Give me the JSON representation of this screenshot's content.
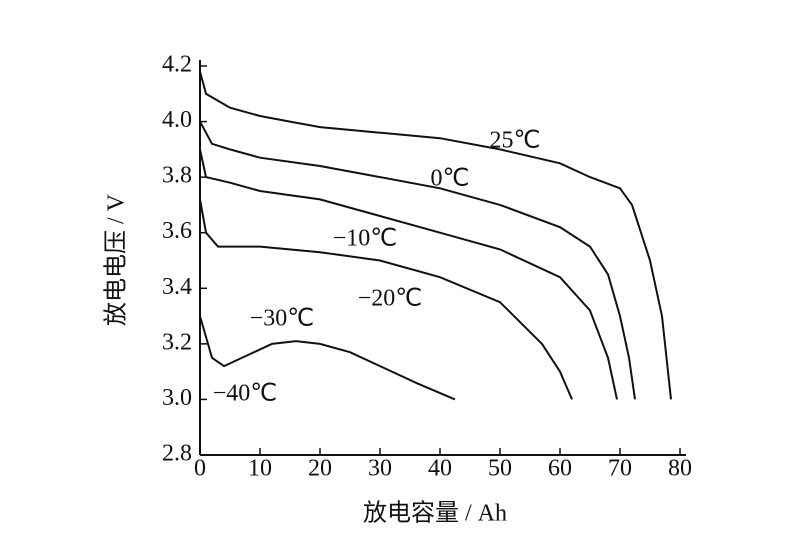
{
  "chart_data": {
    "type": "line",
    "xlabel": "放电容量 / Ah",
    "ylabel": "放电电压 / V",
    "xlim": [
      0,
      80
    ],
    "xticks": [
      0,
      10,
      20,
      30,
      40,
      50,
      60,
      70,
      80
    ],
    "ylim": [
      2.8,
      4.2
    ],
    "yticks": [
      2.8,
      {
        "value": 3,
        "label": "3.0"
      },
      3.2,
      3.4,
      3.6,
      3.8,
      {
        "value": 4,
        "label": "4.0"
      },
      4.2
    ],
    "series": [
      {
        "name": "25℃",
        "color": "#111111",
        "x": [
          0,
          1,
          5,
          10,
          15,
          20,
          30,
          40,
          50,
          60,
          65,
          70,
          72,
          75,
          77,
          78.5
        ],
        "values": [
          4.18,
          4.1,
          4.05,
          4.02,
          4.0,
          3.98,
          3.96,
          3.94,
          3.9,
          3.85,
          3.8,
          3.76,
          3.7,
          3.5,
          3.3,
          3.0
        ]
      },
      {
        "name": "0℃",
        "color": "#111111",
        "x": [
          0,
          2,
          5,
          10,
          20,
          30,
          40,
          50,
          60,
          65,
          68,
          70,
          71.5,
          72.5
        ],
        "values": [
          4.0,
          3.92,
          3.9,
          3.87,
          3.84,
          3.8,
          3.76,
          3.7,
          3.62,
          3.55,
          3.45,
          3.3,
          3.15,
          3.0
        ]
      },
      {
        "name": "−10℃",
        "color": "#111111",
        "x": [
          0,
          1,
          5,
          10,
          20,
          30,
          40,
          50,
          60,
          65,
          68,
          69.5
        ],
        "values": [
          3.9,
          3.8,
          3.78,
          3.75,
          3.72,
          3.66,
          3.6,
          3.54,
          3.44,
          3.32,
          3.15,
          3.0
        ]
      },
      {
        "name": "−20℃",
        "color": "#111111",
        "x": [
          0,
          1,
          3,
          10,
          20,
          30,
          40,
          50,
          57,
          60,
          62
        ],
        "values": [
          3.72,
          3.6,
          3.55,
          3.55,
          3.53,
          3.5,
          3.44,
          3.35,
          3.2,
          3.1,
          3.0
        ]
      },
      {
        "name": "−30℃",
        "color": "#111111",
        "x": [
          0,
          2,
          4,
          8,
          12,
          16,
          20,
          25,
          30,
          36,
          42.5
        ],
        "values": [
          3.3,
          3.15,
          3.12,
          3.16,
          3.2,
          3.21,
          3.2,
          3.17,
          3.12,
          3.06,
          3.0
        ]
      }
    ],
    "annotations": [
      "−40℃"
    ]
  }
}
